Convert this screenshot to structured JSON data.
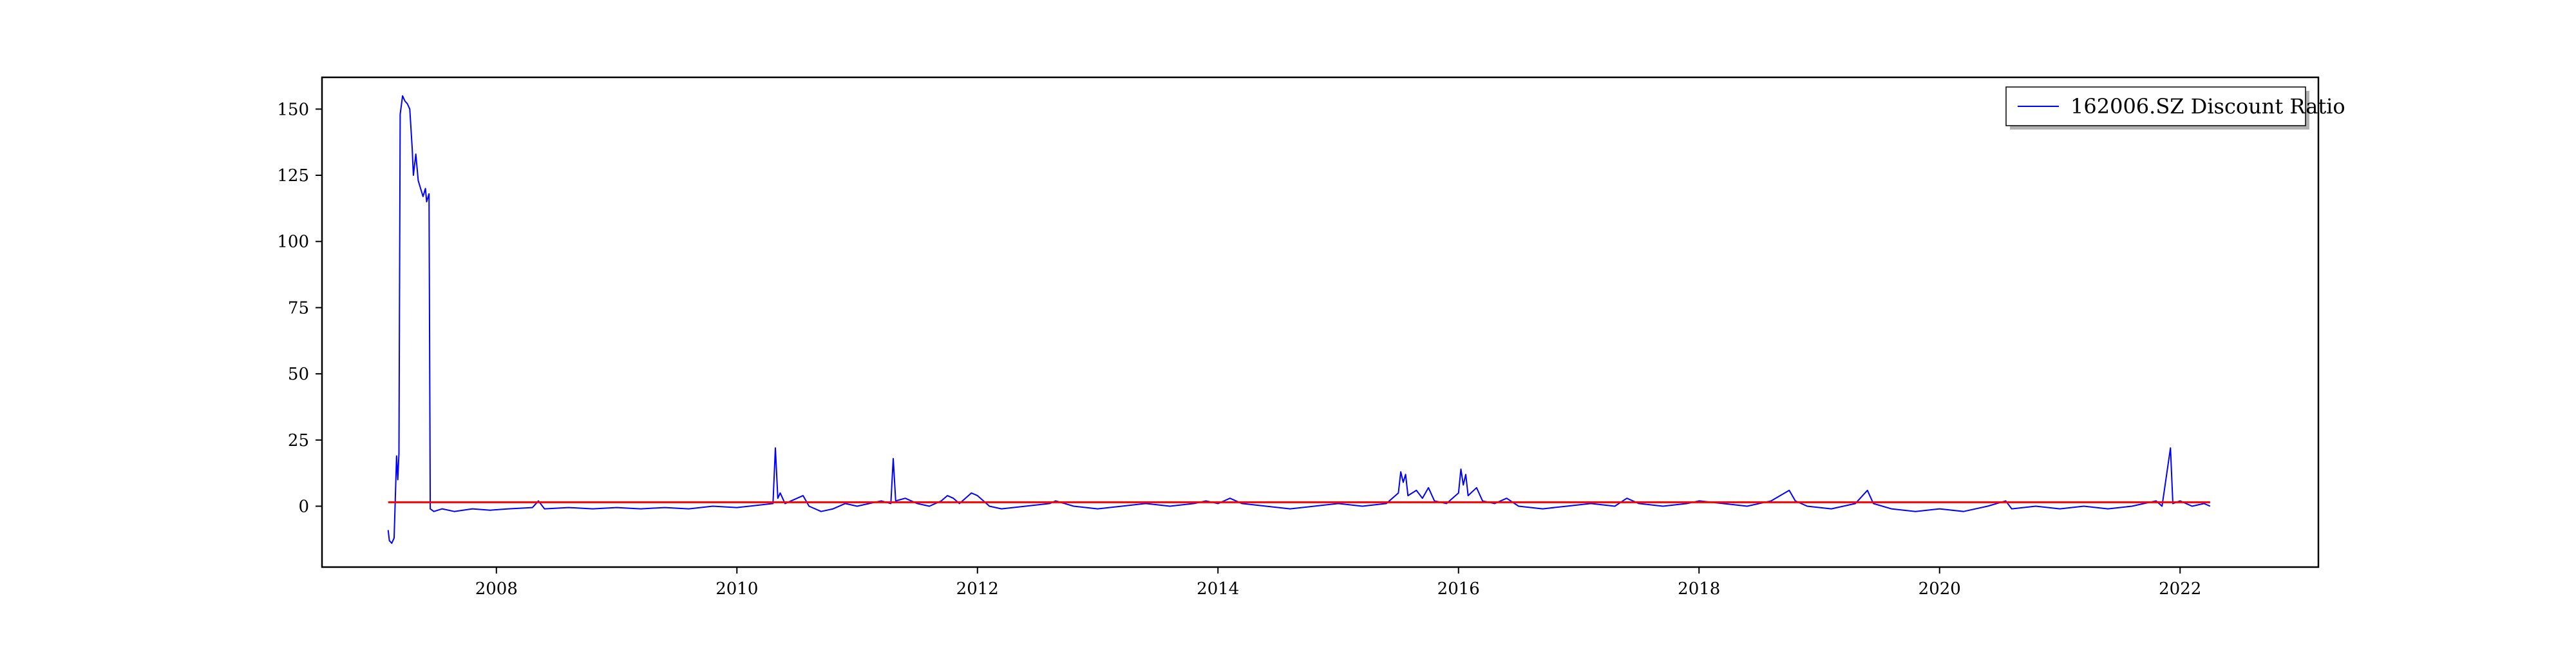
{
  "chart_data": {
    "type": "line",
    "title": "",
    "xlabel": "",
    "ylabel": "",
    "xlim": [
      2006.55,
      2023.15
    ],
    "ylim": [
      -23,
      162
    ],
    "x_ticks": [
      "2008",
      "2010",
      "2012",
      "2014",
      "2016",
      "2018",
      "2020",
      "2022"
    ],
    "y_ticks": [
      "0",
      "25",
      "50",
      "75",
      "100",
      "125",
      "150"
    ],
    "grid": false,
    "legend_position": "top-right",
    "series": [
      {
        "name": "162006.SZ Discount Ratio",
        "color": "#0000ff",
        "points": [
          [
            2007.1,
            -9
          ],
          [
            2007.11,
            -13
          ],
          [
            2007.13,
            -14
          ],
          [
            2007.15,
            -12
          ],
          [
            2007.17,
            19
          ],
          [
            2007.18,
            10
          ],
          [
            2007.19,
            20
          ],
          [
            2007.2,
            148
          ],
          [
            2007.22,
            155
          ],
          [
            2007.24,
            153
          ],
          [
            2007.26,
            152
          ],
          [
            2007.28,
            150
          ],
          [
            2007.3,
            135
          ],
          [
            2007.31,
            125
          ],
          [
            2007.33,
            133
          ],
          [
            2007.35,
            123
          ],
          [
            2007.37,
            120
          ],
          [
            2007.39,
            117
          ],
          [
            2007.41,
            120
          ],
          [
            2007.42,
            115
          ],
          [
            2007.44,
            118
          ],
          [
            2007.45,
            -1
          ],
          [
            2007.48,
            -2
          ],
          [
            2007.55,
            -1
          ],
          [
            2007.65,
            -2
          ],
          [
            2007.8,
            -1
          ],
          [
            2007.95,
            -1.5
          ],
          [
            2008.1,
            -1
          ],
          [
            2008.3,
            -0.5
          ],
          [
            2008.35,
            2
          ],
          [
            2008.4,
            -1
          ],
          [
            2008.6,
            -0.5
          ],
          [
            2008.8,
            -1
          ],
          [
            2009.0,
            -0.5
          ],
          [
            2009.2,
            -1
          ],
          [
            2009.4,
            -0.5
          ],
          [
            2009.6,
            -1
          ],
          [
            2009.8,
            0
          ],
          [
            2010.0,
            -0.5
          ],
          [
            2010.2,
            0.5
          ],
          [
            2010.3,
            1
          ],
          [
            2010.32,
            22
          ],
          [
            2010.34,
            3
          ],
          [
            2010.36,
            5
          ],
          [
            2010.4,
            1
          ],
          [
            2010.5,
            3
          ],
          [
            2010.55,
            4
          ],
          [
            2010.6,
            0
          ],
          [
            2010.7,
            -2
          ],
          [
            2010.8,
            -1
          ],
          [
            2010.9,
            1
          ],
          [
            2011.0,
            0
          ],
          [
            2011.1,
            1
          ],
          [
            2011.2,
            2
          ],
          [
            2011.28,
            1
          ],
          [
            2011.3,
            18
          ],
          [
            2011.32,
            2
          ],
          [
            2011.4,
            3
          ],
          [
            2011.5,
            1
          ],
          [
            2011.6,
            0
          ],
          [
            2011.7,
            2
          ],
          [
            2011.75,
            4
          ],
          [
            2011.8,
            3
          ],
          [
            2011.85,
            1
          ],
          [
            2011.9,
            3
          ],
          [
            2011.95,
            5
          ],
          [
            2012.0,
            4
          ],
          [
            2012.05,
            2
          ],
          [
            2012.1,
            0
          ],
          [
            2012.2,
            -1
          ],
          [
            2012.4,
            0
          ],
          [
            2012.6,
            1
          ],
          [
            2012.65,
            2
          ],
          [
            2012.8,
            0
          ],
          [
            2013.0,
            -1
          ],
          [
            2013.2,
            0
          ],
          [
            2013.4,
            1
          ],
          [
            2013.6,
            0
          ],
          [
            2013.8,
            1
          ],
          [
            2013.9,
            2
          ],
          [
            2014.0,
            1
          ],
          [
            2014.1,
            3
          ],
          [
            2014.2,
            1
          ],
          [
            2014.4,
            0
          ],
          [
            2014.6,
            -1
          ],
          [
            2014.8,
            0
          ],
          [
            2015.0,
            1
          ],
          [
            2015.2,
            0
          ],
          [
            2015.4,
            1
          ],
          [
            2015.5,
            5
          ],
          [
            2015.52,
            13
          ],
          [
            2015.54,
            9
          ],
          [
            2015.56,
            12
          ],
          [
            2015.58,
            4
          ],
          [
            2015.65,
            6
          ],
          [
            2015.7,
            3
          ],
          [
            2015.75,
            7
          ],
          [
            2015.8,
            2
          ],
          [
            2015.9,
            1
          ],
          [
            2015.95,
            3
          ],
          [
            2016.0,
            5
          ],
          [
            2016.02,
            14
          ],
          [
            2016.04,
            8
          ],
          [
            2016.06,
            12
          ],
          [
            2016.08,
            4
          ],
          [
            2016.15,
            7
          ],
          [
            2016.2,
            2
          ],
          [
            2016.3,
            1
          ],
          [
            2016.4,
            3
          ],
          [
            2016.5,
            0
          ],
          [
            2016.7,
            -1
          ],
          [
            2016.9,
            0
          ],
          [
            2017.1,
            1
          ],
          [
            2017.3,
            0
          ],
          [
            2017.4,
            3
          ],
          [
            2017.5,
            1
          ],
          [
            2017.7,
            0
          ],
          [
            2017.9,
            1
          ],
          [
            2018.0,
            2
          ],
          [
            2018.2,
            1
          ],
          [
            2018.4,
            0
          ],
          [
            2018.6,
            2
          ],
          [
            2018.75,
            6
          ],
          [
            2018.8,
            2
          ],
          [
            2018.9,
            0
          ],
          [
            2019.1,
            -1
          ],
          [
            2019.3,
            1
          ],
          [
            2019.4,
            6
          ],
          [
            2019.45,
            1
          ],
          [
            2019.6,
            -1
          ],
          [
            2019.8,
            -2
          ],
          [
            2020.0,
            -1
          ],
          [
            2020.2,
            -2
          ],
          [
            2020.4,
            0
          ],
          [
            2020.55,
            2
          ],
          [
            2020.6,
            -1
          ],
          [
            2020.8,
            0
          ],
          [
            2021.0,
            -1
          ],
          [
            2021.2,
            0
          ],
          [
            2021.4,
            -1
          ],
          [
            2021.6,
            0
          ],
          [
            2021.7,
            1
          ],
          [
            2021.8,
            2
          ],
          [
            2021.85,
            0
          ],
          [
            2021.92,
            22
          ],
          [
            2021.94,
            1
          ],
          [
            2022.0,
            2
          ],
          [
            2022.1,
            0
          ],
          [
            2022.2,
            1
          ],
          [
            2022.25,
            0
          ]
        ]
      },
      {
        "name": "",
        "color": "#ff0000",
        "points": [
          [
            2007.1,
            1.5
          ],
          [
            2022.25,
            1.5
          ]
        ]
      }
    ]
  }
}
